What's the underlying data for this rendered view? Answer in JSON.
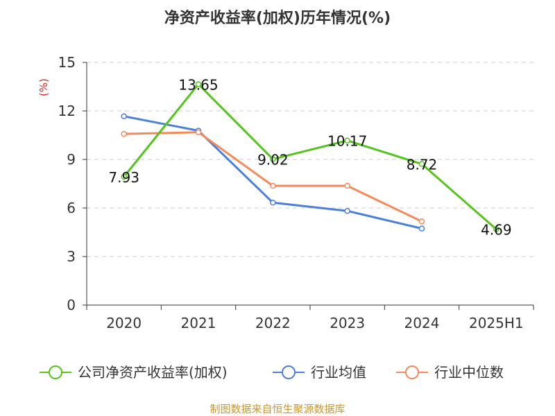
{
  "chart_data": {
    "type": "line",
    "title": "净资产收益率(加权)历年情况(%)",
    "ylabel": "(%)",
    "xlabel": "",
    "categories": [
      "2020",
      "2021",
      "2022",
      "2023",
      "2024",
      "2025H1"
    ],
    "ylim": [
      0,
      15
    ],
    "yticks": [
      "0",
      "3",
      "6",
      "9",
      "12",
      "15"
    ],
    "grid": true,
    "legend_position": "bottom",
    "series": [
      {
        "name": "公司净资产收益率(加权)",
        "color": "#52c41a",
        "values": [
          7.93,
          13.65,
          9.02,
          10.17,
          8.72,
          4.69
        ],
        "labels": [
          "7.93",
          "13.65",
          "9.02",
          "10.17",
          "8.72",
          "4.69"
        ]
      },
      {
        "name": "行业均值",
        "color": "#4a7fdc",
        "values": [
          11.67,
          10.78,
          6.33,
          5.82,
          4.73,
          null
        ]
      },
      {
        "name": "行业中位数",
        "color": "#f5895a",
        "values": [
          10.58,
          10.68,
          7.37,
          7.37,
          5.17,
          null
        ]
      }
    ],
    "source": "制图数据来自恒生聚源数据库"
  }
}
